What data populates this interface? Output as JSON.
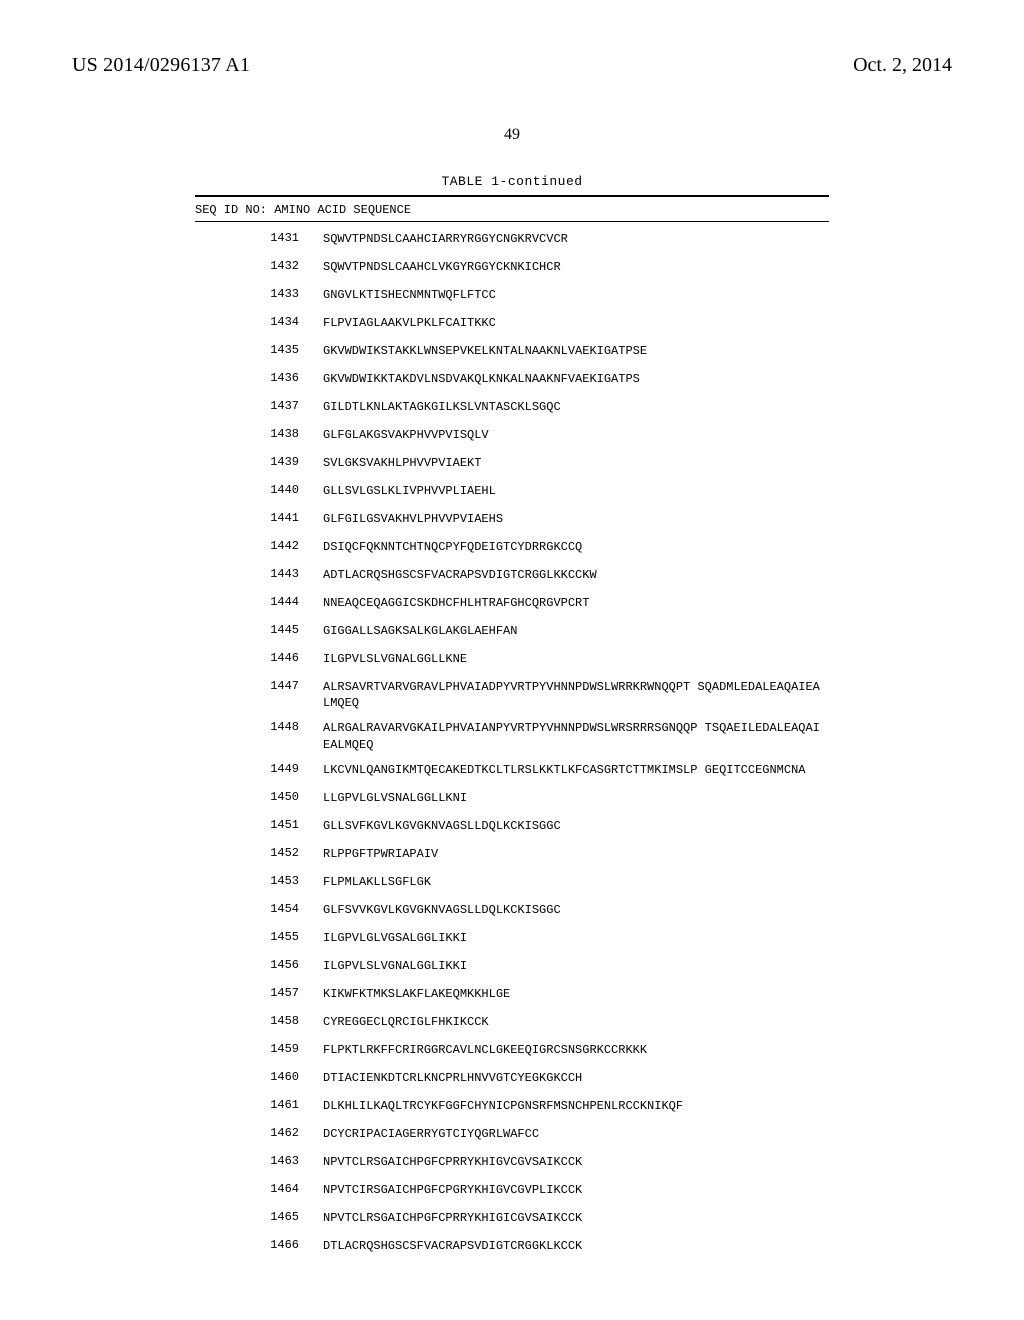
{
  "header": {
    "doc_number": "US 2014/0296137 A1",
    "pub_date": "Oct. 2, 2014"
  },
  "page_number": "49",
  "table": {
    "title": "TABLE 1-continued",
    "column_header": "SEQ ID NO: AMINO ACID SEQUENCE",
    "rows": [
      {
        "id": "1431",
        "seq": "SQWVTPNDSLCAAHCIARRYRGGYCNGKRVCVCR"
      },
      {
        "id": "1432",
        "seq": "SQWVTPNDSLCAAHCLVKGYRGGYCKNKICHCR"
      },
      {
        "id": "1433",
        "seq": "GNGVLKTISHECNMNTWQFLFTCC"
      },
      {
        "id": "1434",
        "seq": "FLPVIAGLAAKVLPKLFCAITKKC"
      },
      {
        "id": "1435",
        "seq": "GKVWDWIKSTAKKLWNSEPVKELKNTALNAAKNLVAEKIGATPSE"
      },
      {
        "id": "1436",
        "seq": "GKVWDWIKKTAKDVLNSDVAKQLKNKALNAAKNFVAEKIGATPS"
      },
      {
        "id": "1437",
        "seq": "GILDTLKNLAKTAGKGILKSLVNTASCKLSGQC"
      },
      {
        "id": "1438",
        "seq": "GLFGLAKGSVAKPHVVPVISQLV"
      },
      {
        "id": "1439",
        "seq": "SVLGKSVAKHLPHVVPVIAEKT"
      },
      {
        "id": "1440",
        "seq": "GLLSVLGSLKLIVPHVVPLIAEHL"
      },
      {
        "id": "1441",
        "seq": "GLFGILGSVAKHVLPHVVPVIAEHS"
      },
      {
        "id": "1442",
        "seq": "DSIQCFQKNNTCHTNQCPYFQDEIGTCYDRRGKCCQ"
      },
      {
        "id": "1443",
        "seq": "ADTLACRQSHGSCSFVACRAPSVDIGTCRGGLKKCCKW"
      },
      {
        "id": "1444",
        "seq": "NNEAQCEQAGGICSKDHCFHLHTRAFGHCQRGVPCRT"
      },
      {
        "id": "1445",
        "seq": "GIGGALLSAGKSALKGLAKGLAEHFAN"
      },
      {
        "id": "1446",
        "seq": "ILGPVLSLVGNALGGLLKNE"
      },
      {
        "id": "1447",
        "seq": "ALRSAVRTVARVGRAVLPHVAIADPYVRTPYVHNNPDWSLWRRKRWNQQPT SQADMLEDALEAQAIEALMQEQ"
      },
      {
        "id": "1448",
        "seq": "ALRGALRAVARVGKAILPHVAIANPYVRTPYVHNNPDWSLWRSRRRSGNQQP TSQAEILEDALEAQAIEALMQEQ"
      },
      {
        "id": "1449",
        "seq": "LKCVNLQANGIKMTQECAKEDTKCLTLRSLKKTLKFCASGRTCTTMKIMSLP GEQITCCEGNMCNA"
      },
      {
        "id": "1450",
        "seq": "LLGPVLGLVSNALGGLLKNI"
      },
      {
        "id": "1451",
        "seq": "GLLSVFKGVLKGVGKNVAGSLLDQLKCKISGGC"
      },
      {
        "id": "1452",
        "seq": "RLPPGFTPWRIAPAIV"
      },
      {
        "id": "1453",
        "seq": "FLPMLAKLLSGFLGK"
      },
      {
        "id": "1454",
        "seq": "GLFSVVKGVLKGVGKNVAGSLLDQLKCKISGGC"
      },
      {
        "id": "1455",
        "seq": "ILGPVLGLVGSALGGLIKKI"
      },
      {
        "id": "1456",
        "seq": "ILGPVLSLVGNALGGLIKKI"
      },
      {
        "id": "1457",
        "seq": "KIKWFKTMKSLAKFLAKEQMKKHLGE"
      },
      {
        "id": "1458",
        "seq": "CYREGGECLQRCIGLFHKIKCCK"
      },
      {
        "id": "1459",
        "seq": "FLPKTLRKFFCRIRGGRCAVLNCLGKEEQIGRCSNSGRKCCRKKK"
      },
      {
        "id": "1460",
        "seq": "DTIACIENKDTCRLKNCPRLHNVVGTCYEGKGKCCH"
      },
      {
        "id": "1461",
        "seq": "DLKHLILKAQLTRCYKFGGFCHYNICPGNSRFMSNCHPENLRCCKNIKQF"
      },
      {
        "id": "1462",
        "seq": "DCYCRIPACIAGERRYGTCIYQGRLWAFCC"
      },
      {
        "id": "1463",
        "seq": "NPVTCLRSGAICHPGFCPRRYKHIGVCGVSAIKCCK"
      },
      {
        "id": "1464",
        "seq": "NPVTCIRSGAICHPGFCPGRYKHIGVCGVPLIKCCK"
      },
      {
        "id": "1465",
        "seq": "NPVTCLRSGAICHPGFCPRRYKHIGICGVSAIKCCK"
      },
      {
        "id": "1466",
        "seq": "DTLACRQSHGSCSFVACRAPSVDIGTCRGGKLKCCK"
      }
    ]
  }
}
